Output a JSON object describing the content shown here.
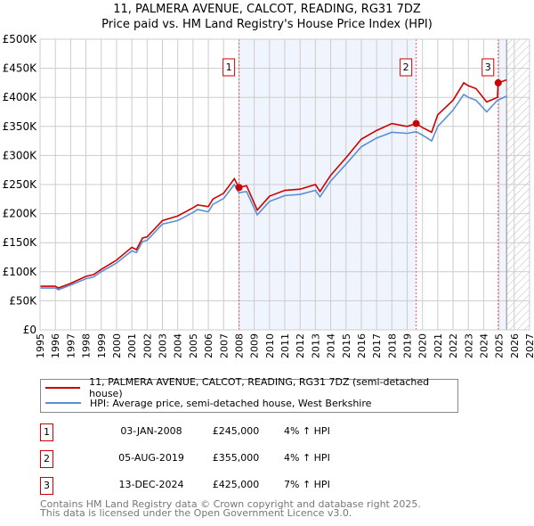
{
  "chart_data": {
    "type": "line",
    "title": "11, PALMERA AVENUE, CALCOT, READING, RG31 7DZ",
    "subtitle": "Price paid vs. HM Land Registry's House Price Index (HPI)",
    "xlim": [
      1995,
      2027
    ],
    "ylim": [
      0,
      500000
    ],
    "x_ticks": [
      "1995",
      "1996",
      "1997",
      "1998",
      "1999",
      "2000",
      "2001",
      "2002",
      "2003",
      "2004",
      "2005",
      "2006",
      "2007",
      "2008",
      "2009",
      "2010",
      "2011",
      "2012",
      "2013",
      "2014",
      "2015",
      "2016",
      "2017",
      "2018",
      "2019",
      "2020",
      "2021",
      "2022",
      "2023",
      "2024",
      "2025",
      "2026",
      "2027"
    ],
    "y_ticks": [
      {
        "v": 0,
        "label": "£0"
      },
      {
        "v": 50000,
        "label": "£50K"
      },
      {
        "v": 100000,
        "label": "£100K"
      },
      {
        "v": 150000,
        "label": "£150K"
      },
      {
        "v": 200000,
        "label": "£200K"
      },
      {
        "v": 250000,
        "label": "£250K"
      },
      {
        "v": 300000,
        "label": "£300K"
      },
      {
        "v": 350000,
        "label": "£350K"
      },
      {
        "v": 400000,
        "label": "£400K"
      },
      {
        "v": 450000,
        "label": "£450K"
      },
      {
        "v": 500000,
        "label": "£500K"
      }
    ],
    "grid": true,
    "series": [
      {
        "name": "11, PALMERA AVENUE, CALCOT, READING, RG31 7DZ (semi-detached house)",
        "color": "#cc0000",
        "x": [
          1995,
          1996,
          1996.2,
          1997,
          1998,
          1998.5,
          1999,
          2000,
          2001,
          2001.3,
          2001.7,
          2002,
          2003,
          2004,
          2005,
          2005.3,
          2006,
          2006.3,
          2007,
          2007.7,
          2008.0,
          2008.5,
          2009.2,
          2010,
          2011,
          2012,
          2013,
          2013.3,
          2014,
          2015,
          2016,
          2017,
          2018,
          2019,
          2019.6,
          2020,
          2020.6,
          2021,
          2022,
          2022.7,
          2023,
          2023.5,
          2024.2,
          2024.9,
          2024.95,
          2025.5
        ],
        "y": [
          75000,
          75000,
          72000,
          80000,
          92000,
          95000,
          104000,
          120000,
          142000,
          138000,
          158000,
          160000,
          188000,
          196000,
          210000,
          215000,
          212000,
          225000,
          235000,
          260000,
          245000,
          248000,
          206000,
          230000,
          240000,
          242000,
          250000,
          238000,
          266000,
          296000,
          328000,
          343000,
          355000,
          350000,
          355000,
          348000,
          340000,
          370000,
          395000,
          425000,
          420000,
          415000,
          392000,
          400000,
          425000,
          430000
        ]
      },
      {
        "name": "HPI: Average price, semi-detached house, West Berkshire",
        "color": "#5b8fd4",
        "x": [
          1995,
          1996,
          1996.2,
          1997,
          1998,
          1998.5,
          1999,
          2000,
          2001,
          2001.3,
          2001.7,
          2002,
          2003,
          2004,
          2005,
          2005.3,
          2006,
          2006.3,
          2007,
          2007.7,
          2008.0,
          2008.5,
          2009.2,
          2010,
          2011,
          2012,
          2013,
          2013.3,
          2014,
          2015,
          2016,
          2017,
          2018,
          2019,
          2019.6,
          2020,
          2020.6,
          2021,
          2022,
          2022.7,
          2023,
          2023.5,
          2024.2,
          2024.9,
          2025.5
        ],
        "y": [
          72000,
          72000,
          69000,
          77000,
          88000,
          91000,
          100000,
          115000,
          136000,
          133000,
          152000,
          154000,
          182000,
          188000,
          202000,
          207000,
          203000,
          216000,
          226000,
          250000,
          236000,
          238000,
          198000,
          221000,
          231000,
          233000,
          240000,
          229000,
          256000,
          285000,
          315000,
          330000,
          340000,
          338000,
          341000,
          335000,
          325000,
          350000,
          378000,
          405000,
          400000,
          395000,
          375000,
          395000,
          402000
        ]
      }
    ],
    "shaded_ranges": [
      [
        2008.01,
        2019.59
      ],
      [
        2024.95,
        2025.5
      ]
    ],
    "forecast_hatch_from": 2025.5,
    "sales": [
      {
        "n": "1",
        "x": 2008.01,
        "y": 245000
      },
      {
        "n": "2",
        "x": 2019.59,
        "y": 355000
      },
      {
        "n": "3",
        "x": 2024.95,
        "y": 425000
      }
    ],
    "legend": "below"
  },
  "table": [
    {
      "n": "1",
      "date": "03-JAN-2008",
      "price": "£245,000",
      "change": "4% ↑ HPI"
    },
    {
      "n": "2",
      "date": "05-AUG-2019",
      "price": "£355,000",
      "change": "4% ↑ HPI"
    },
    {
      "n": "3",
      "date": "13-DEC-2024",
      "price": "£425,000",
      "change": "7% ↑ HPI"
    }
  ],
  "footer": {
    "line1": "Contains HM Land Registry data © Crown copyright and database right 2025.",
    "line2": "This data is licensed under the Open Government Licence v3.0."
  }
}
